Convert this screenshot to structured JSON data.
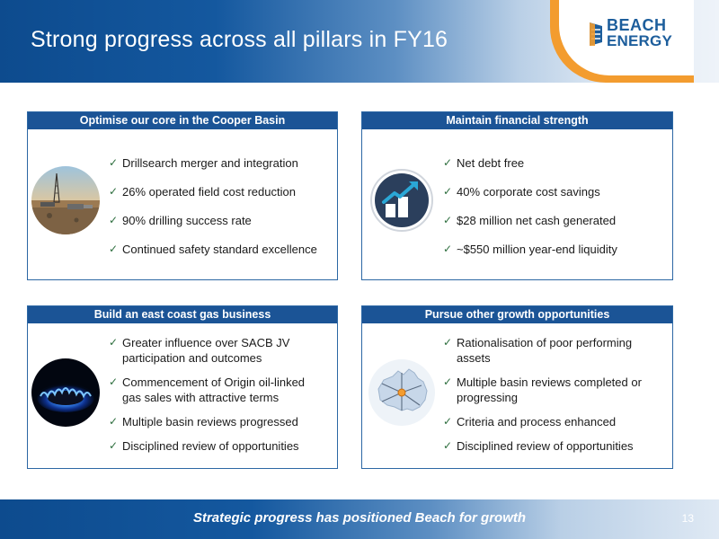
{
  "title": "Strong progress across all pillars in FY16",
  "logo": {
    "line1": "BEACH",
    "line2": "ENERGY"
  },
  "panels": [
    {
      "heading": "Optimise our core in the Cooper Basin",
      "image": "outback-oil-rig-photo",
      "bullets": [
        "Drillsearch merger and integration",
        "26% operated field cost reduction",
        "90% drilling success rate",
        "Continued safety standard excellence"
      ]
    },
    {
      "heading": "Maintain financial strength",
      "image": "growth-chart-icon",
      "bullets": [
        "Net debt free",
        "40% corporate cost savings",
        "$28 million net cash generated",
        "~$550 million year-end liquidity"
      ]
    },
    {
      "heading": "Build an east coast gas business",
      "image": "gas-flame-photo",
      "bullets": [
        [
          "Greater influence over SACB JV",
          "participation and outcomes"
        ],
        [
          "Commencement of Origin oil-linked",
          "gas sales with attractive terms"
        ],
        [
          "Multiple basin reviews progressed"
        ],
        [
          "Disciplined review of opportunities"
        ]
      ]
    },
    {
      "heading": "Pursue other growth opportunities",
      "image": "australia-map-icon",
      "bullets": [
        [
          "Rationalisation of poor performing",
          "assets"
        ],
        [
          "Multiple basin reviews completed or",
          "progressing"
        ],
        [
          "Criteria and process enhanced"
        ],
        [
          "Disciplined review of opportunities"
        ]
      ]
    }
  ],
  "footer": {
    "tagline": "Strategic progress has positioned Beach for growth",
    "page_number": "13"
  },
  "colors": {
    "brand_blue": "#1b5496",
    "accent_orange": "#f39c2f",
    "tick_green": "#2d6e3e"
  }
}
